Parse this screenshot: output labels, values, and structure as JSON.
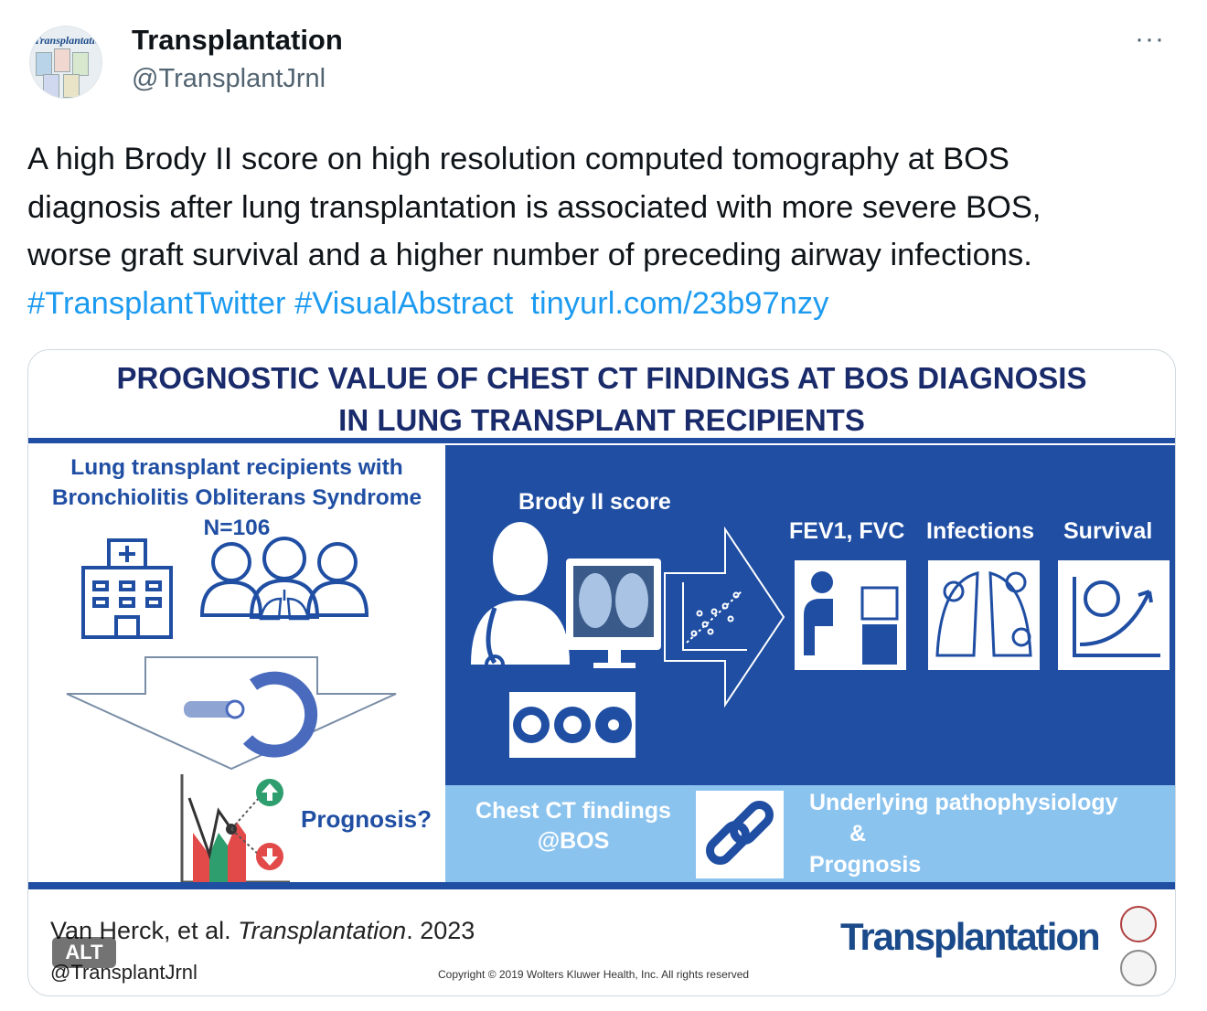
{
  "author": {
    "name": "Transplantation",
    "handle": "@TransplantJrnl",
    "avatar_text": "Transplantation"
  },
  "menu": {
    "more_icon": "···"
  },
  "tweet": {
    "line1": "A high Brody II score on high resolution computed tomography at BOS",
    "line2": "diagnosis after lung transplantation is associated with more severe BOS,",
    "line3": "worse graft survival and a higher number of preceding airway infections.",
    "hashtag1": "#TransplantTwitter",
    "hashtag2": "#VisualAbstract",
    "link": "tinyurl.com/23b97nzy"
  },
  "abstract": {
    "title_line1": "PROGNOSTIC VALUE OF CHEST CT FINDINGS AT BOS DIAGNOSIS",
    "title_line2": "IN LUNG TRANSPLANT RECIPIENTS",
    "left_line1": "Lung transplant recipients with",
    "left_line2": "Bronchiolitis Obliterans Syndrome",
    "left_line3": "N=106",
    "prognosis": "Prognosis?",
    "brody": "Brody II score",
    "outcome1": "FEV1, FVC",
    "outcome2": "Infections",
    "outcome3": "Survival",
    "ct_line1": "Chest CT findings",
    "ct_line2": "@BOS",
    "under_line1": "Underlying pathophysiology",
    "under_line2": "&",
    "under_line3": "Prognosis",
    "cite_authors": "Van Herck, et al. ",
    "cite_journal": "Transplantation",
    "cite_year": ". 2023",
    "footer_handle": "@TransplantJrnl",
    "copyright": "Copyright © 2019 Wolters Kluwer Health, Inc. All rights reserved",
    "journal_logo": "Transplantation",
    "alt_badge": "ALT"
  },
  "colors": {
    "link": "#1d9bf0",
    "abstract_blue": "#1f4ea3",
    "light_blue": "#8bc3ef",
    "title_navy": "#1a2b6b"
  },
  "icons": [
    "more-icon",
    "hospital-icon",
    "people-icon",
    "lungs-icon",
    "ct-scanner-icon",
    "down-arrow-icon",
    "chart-icon",
    "up-arrow-icon",
    "doctor-icon",
    "monitor-icon",
    "ct-slices-icon",
    "scatter-icon",
    "right-arrow-icon",
    "spirometry-icon",
    "infected-lungs-icon",
    "skull-chart-icon",
    "chain-link-icon",
    "journal-seal-icon"
  ]
}
